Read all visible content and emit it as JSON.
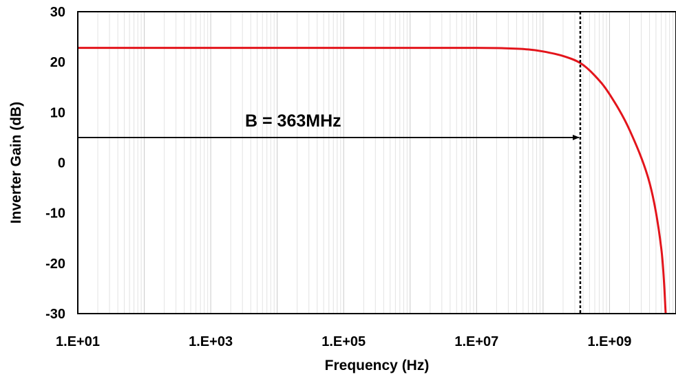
{
  "chart_data": {
    "type": "line",
    "title": "",
    "xlabel": "Frequency (Hz)",
    "ylabel": "Inverter Gain (dB)",
    "xscale": "log",
    "xlim": [
      10,
      10000000000
    ],
    "ylim": [
      -30,
      30
    ],
    "x_ticks": [
      10,
      1000,
      100000,
      10000000,
      1000000000
    ],
    "x_tick_labels": [
      "1.E+01",
      "1.E+03",
      "1.E+05",
      "1.E+07",
      "1.E+09"
    ],
    "y_ticks": [
      -30,
      -20,
      -10,
      0,
      10,
      20,
      30
    ],
    "y_tick_labels": [
      "-30",
      "-20",
      "-10",
      "0",
      "10",
      "20",
      "30"
    ],
    "grid": "vertical major and minor lines on the log axis",
    "legend": "none",
    "series": [
      {
        "color": "#e3141b",
        "x": [
          10,
          1000,
          100000,
          10000000,
          30000000,
          60000000,
          100000000,
          200000000,
          363000000,
          600000000,
          1000000000,
          2000000000,
          4000000000,
          6000000000,
          7000000000
        ],
        "y": [
          22.8,
          22.8,
          22.8,
          22.8,
          22.7,
          22.5,
          22.1,
          21.2,
          19.8,
          17.3,
          13.6,
          6.5,
          -4.0,
          -17.0,
          -30.0
        ]
      }
    ],
    "annotations": {
      "bandwidth_marker_x": 363000000,
      "marker_style": "dotted vertical line",
      "arrow": {
        "from_x": 10,
        "to_x": 363000000,
        "y": 5
      },
      "text": "B = 363MHz"
    }
  }
}
